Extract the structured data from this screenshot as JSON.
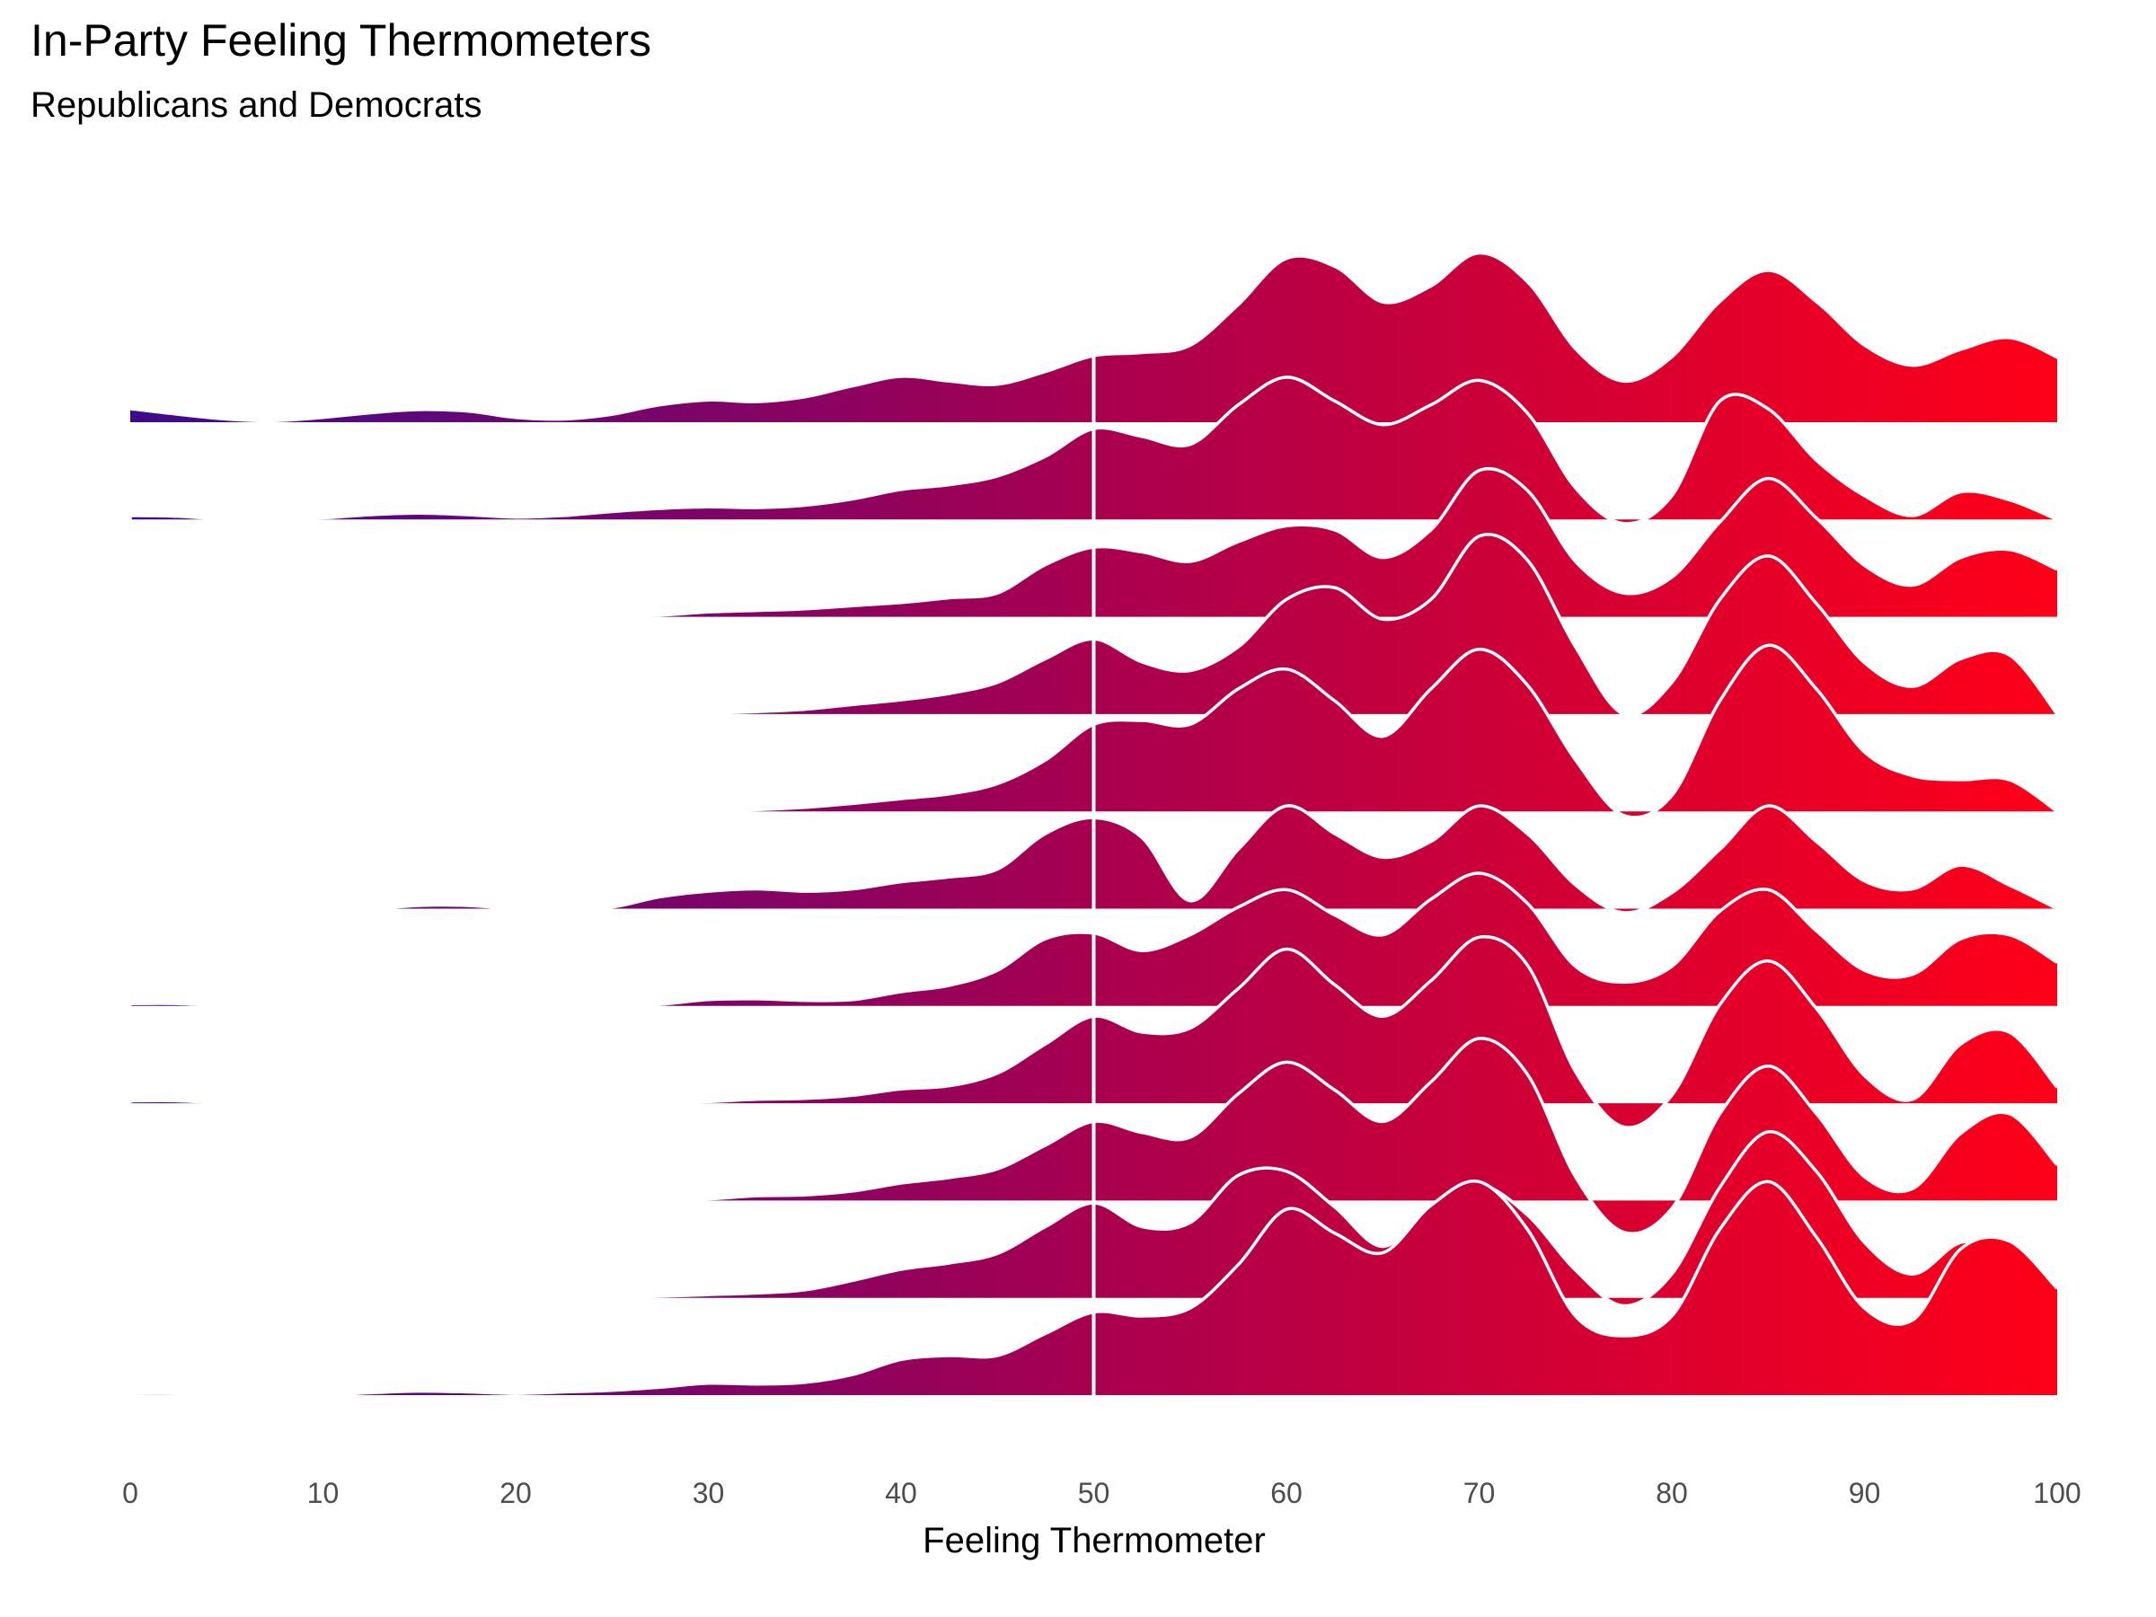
{
  "chart_data": {
    "type": "ridgeline",
    "title": "In-Party Feeling Thermometers",
    "subtitle": "Republicans and Democrats",
    "xlabel": "Feeling Thermometer",
    "ylabel": "",
    "xlim": [
      0,
      100
    ],
    "x_ticks": [
      0,
      10,
      20,
      30,
      40,
      50,
      60,
      70,
      80,
      90,
      100
    ],
    "reference_line_x": 50,
    "reference_line_color": "#ffffff",
    "fill_gradient": {
      "low": "#3f0a8c",
      "mid": "#a8004f",
      "high": "#ff0018"
    },
    "outline_color": "#ffffff",
    "grid": false,
    "legend": "none",
    "x_grid": [
      0,
      2.5,
      5,
      7.5,
      10,
      12.5,
      15,
      17.5,
      20,
      22.5,
      25,
      27.5,
      30,
      32.5,
      35,
      37.5,
      40,
      42.5,
      45,
      47.5,
      50,
      52.5,
      55,
      57.5,
      60,
      62.5,
      65,
      67.5,
      70,
      72.5,
      75,
      77.5,
      80,
      82.5,
      85,
      87.5,
      90,
      92.5,
      95,
      97.5,
      100
    ],
    "series": [
      {
        "values": [
          0.15,
          0.08,
          0.02,
          0.0,
          0.04,
          0.1,
          0.14,
          0.12,
          0.04,
          0.02,
          0.08,
          0.2,
          0.26,
          0.24,
          0.3,
          0.44,
          0.56,
          0.5,
          0.46,
          0.62,
          0.82,
          0.86,
          0.95,
          1.46,
          2.05,
          1.95,
          1.5,
          1.7,
          2.12,
          1.75,
          0.9,
          0.5,
          0.8,
          1.5,
          1.9,
          1.5,
          0.95,
          0.7,
          0.9,
          1.05,
          0.8
        ]
      },
      {
        "values": [
          0.05,
          0.04,
          0.0,
          0.0,
          0.02,
          0.06,
          0.08,
          0.06,
          0.03,
          0.05,
          0.1,
          0.14,
          0.16,
          0.15,
          0.18,
          0.26,
          0.38,
          0.44,
          0.55,
          0.8,
          1.15,
          1.05,
          0.95,
          1.45,
          1.8,
          1.5,
          1.2,
          1.45,
          1.76,
          1.35,
          0.4,
          -0.05,
          0.3,
          1.5,
          1.4,
          0.75,
          0.3,
          0.05,
          0.35,
          0.25,
          0.0
        ]
      },
      {
        "values": [
          0,
          0,
          0,
          0,
          0,
          0,
          0,
          0,
          0,
          0,
          0,
          0.02,
          0.06,
          0.08,
          0.1,
          0.14,
          0.18,
          0.24,
          0.3,
          0.66,
          0.88,
          0.82,
          0.7,
          0.95,
          1.15,
          1.1,
          0.75,
          1.1,
          1.85,
          1.6,
          0.7,
          0.3,
          0.5,
          1.2,
          1.75,
          1.25,
          0.65,
          0.4,
          0.75,
          0.85,
          0.6
        ]
      },
      {
        "values": [
          0,
          0,
          0,
          0,
          0,
          0,
          0,
          0,
          0,
          0,
          0,
          0,
          0.01,
          0.03,
          0.06,
          0.12,
          0.18,
          0.26,
          0.4,
          0.7,
          0.95,
          0.66,
          0.55,
          0.85,
          1.45,
          1.6,
          1.2,
          1.45,
          2.25,
          1.95,
          0.85,
          0.0,
          0.4,
          1.45,
          2.0,
          1.4,
          0.65,
          0.35,
          0.7,
          0.75,
          0.0
        ]
      },
      {
        "values": [
          0,
          0,
          0,
          0,
          0,
          0,
          0,
          0,
          0,
          0,
          0,
          0,
          0,
          0.02,
          0.05,
          0.1,
          0.16,
          0.22,
          0.35,
          0.65,
          1.1,
          1.15,
          1.1,
          1.55,
          1.8,
          1.4,
          0.95,
          1.55,
          2.05,
          1.6,
          0.65,
          -0.05,
          0.2,
          1.4,
          2.1,
          1.55,
          0.75,
          0.45,
          0.4,
          0.4,
          0.0
        ]
      },
      {
        "values": [
          0,
          0,
          0,
          0,
          0,
          0,
          0.04,
          0.04,
          0,
          0,
          0.02,
          0.15,
          0.22,
          0.25,
          0.22,
          0.25,
          0.34,
          0.4,
          0.5,
          0.95,
          1.15,
          0.9,
          0.1,
          0.75,
          1.3,
          0.95,
          0.65,
          0.85,
          1.3,
          0.95,
          0.3,
          -0.05,
          0.2,
          0.75,
          1.3,
          0.85,
          0.35,
          0.25,
          0.55,
          0.3,
          0.0
        ]
      },
      {
        "values": [
          0.03,
          0.03,
          0,
          0,
          0,
          0,
          0,
          0,
          0,
          0,
          0,
          0.02,
          0.08,
          0.09,
          0.07,
          0.08,
          0.18,
          0.26,
          0.45,
          0.85,
          0.92,
          0.7,
          0.9,
          1.25,
          1.47,
          1.15,
          0.9,
          1.35,
          1.68,
          1.3,
          0.5,
          0.3,
          0.5,
          1.2,
          1.47,
          0.95,
          0.45,
          0.4,
          0.85,
          0.9,
          0.55
        ]
      },
      {
        "values": [
          0.03,
          0.03,
          0,
          0,
          0,
          0,
          0,
          0,
          0,
          0,
          0,
          0,
          0.02,
          0.05,
          0.06,
          0.1,
          0.18,
          0.22,
          0.38,
          0.75,
          1.1,
          0.9,
          0.95,
          1.45,
          1.95,
          1.5,
          1.1,
          1.55,
          2.1,
          1.75,
          0.4,
          -0.3,
          0.1,
          1.25,
          1.8,
          1.2,
          0.35,
          0.05,
          0.75,
          0.9,
          0.2
        ]
      },
      {
        "values": [
          0,
          0,
          0,
          0,
          0,
          0,
          0,
          0,
          0,
          0,
          0,
          0,
          0.02,
          0.06,
          0.07,
          0.12,
          0.22,
          0.29,
          0.4,
          0.7,
          1.0,
          0.86,
          0.8,
          1.35,
          1.75,
          1.4,
          1.0,
          1.5,
          2.05,
          1.6,
          0.3,
          -0.4,
          -0.1,
          1.1,
          1.7,
          1.1,
          0.3,
          0.15,
          0.85,
          1.1,
          0.45
        ]
      },
      {
        "values": [
          0,
          0,
          0,
          0,
          0,
          0,
          0,
          0,
          0,
          0,
          0,
          0.02,
          0.04,
          0.06,
          0.1,
          0.22,
          0.36,
          0.44,
          0.56,
          0.9,
          1.2,
          0.9,
          0.95,
          1.55,
          1.6,
          1.15,
          0.65,
          1.15,
          1.43,
          1.05,
          0.35,
          -0.1,
          0.3,
          1.4,
          2.1,
          1.6,
          0.7,
          0.3,
          0.7,
          0.6,
          0.0
        ]
      },
      {
        "values": [
          0.02,
          0.02,
          0.01,
          0,
          0,
          0.03,
          0.05,
          0.04,
          0.02,
          0.04,
          0.06,
          0.1,
          0.15,
          0.14,
          0.16,
          0.26,
          0.45,
          0.5,
          0.5,
          0.78,
          1.05,
          1.0,
          1.1,
          1.65,
          2.35,
          2.05,
          1.8,
          2.4,
          2.7,
          2.1,
          1.0,
          0.75,
          1.0,
          2.1,
          2.7,
          2.0,
          1.1,
          0.95,
          1.85,
          1.95,
          1.35
        ]
      }
    ]
  }
}
